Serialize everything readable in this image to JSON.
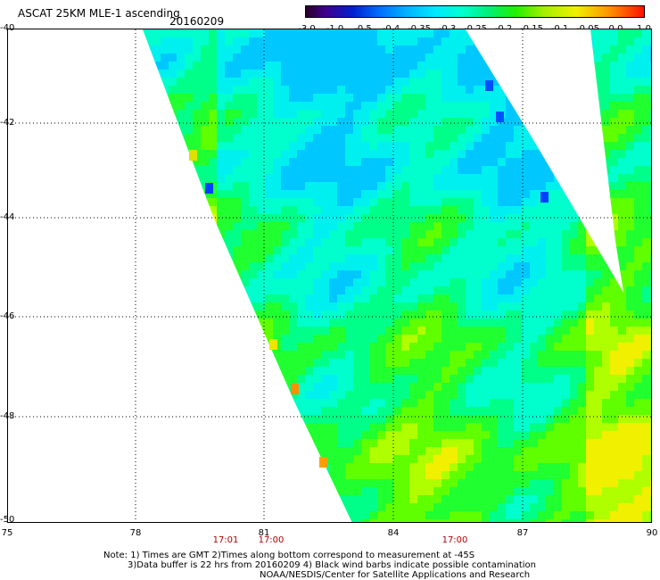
{
  "header": {
    "title": "ASCAT 25KM MLE-1 ascending",
    "date": "20160209"
  },
  "colorbar": {
    "ticks": [
      "-3.0",
      "-1.0",
      "-0.5",
      "-0.4",
      "-0.35",
      "-0.3",
      "-0.25",
      "-0.2",
      "-0.15",
      "-0.1",
      "-0.05",
      "0.0",
      "1.0"
    ]
  },
  "axes": {
    "y_ticks": [
      "-40",
      "-42",
      "-44",
      "-46",
      "-48",
      "-50"
    ],
    "x_ticks": [
      "75",
      "78",
      "81",
      "84",
      "87",
      "90"
    ]
  },
  "times": {
    "t1": "17:01",
    "t2": "17:00",
    "t3": "17:00"
  },
  "notes": {
    "line1": "Note: 1) Times are GMT 2)Times along bottom correspond to measurement at -45S",
    "line2": "3)Data buffer is 22 hrs from 20160209 4) Black wind barbs indicate possible contamination",
    "line3": "NOAA/NESDIS/Center for Satellite Applications and Research"
  }
}
